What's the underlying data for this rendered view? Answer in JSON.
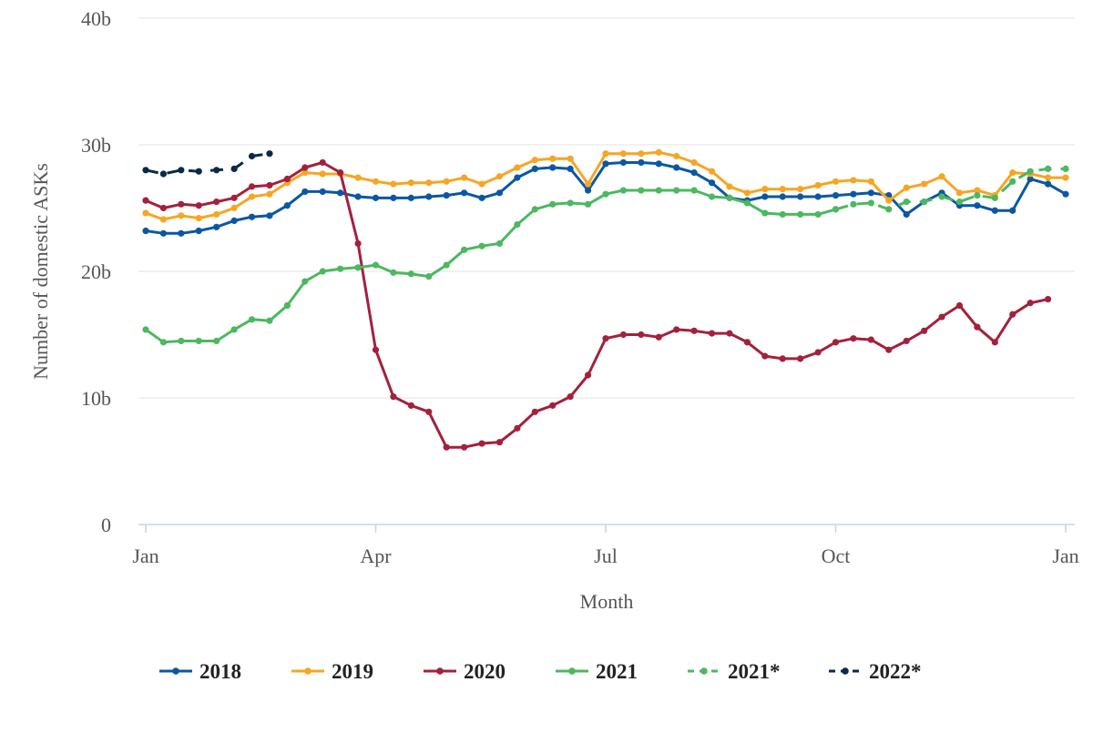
{
  "chart_data": {
    "type": "line",
    "title": "",
    "xlabel": "Month",
    "ylabel": "Number of domestic ASKs",
    "y_unit": "billions",
    "ylim": [
      0,
      40
    ],
    "y_ticks": [
      0,
      10,
      20,
      30,
      40
    ],
    "y_tick_labels": [
      "0",
      "10b",
      "20b",
      "30b",
      "40b"
    ],
    "x_unit": "week of year (1 = first week of January)",
    "xlim": [
      1,
      53
    ],
    "x_ticks": [
      1,
      14,
      27,
      40,
      53
    ],
    "x_tick_labels": [
      "Jan",
      "Apr",
      "Jul",
      "Oct",
      "Jan"
    ],
    "grid": "horizontal",
    "legend_position": "bottom",
    "series": [
      {
        "name": "2018",
        "color": "#0b57a4",
        "dash": "solid",
        "x": [
          1,
          2,
          3,
          4,
          5,
          6,
          7,
          8,
          9,
          10,
          11,
          12,
          13,
          14,
          15,
          16,
          17,
          18,
          19,
          20,
          21,
          22,
          23,
          24,
          25,
          26,
          27,
          28,
          29,
          30,
          31,
          32,
          33,
          34,
          35,
          36,
          37,
          38,
          39,
          40,
          41,
          42,
          43,
          44,
          45,
          46,
          47,
          48,
          49,
          50,
          51,
          52,
          53
        ],
        "values": [
          23.2,
          23.0,
          23.0,
          23.2,
          23.5,
          24.0,
          24.3,
          24.4,
          25.2,
          26.3,
          26.3,
          26.2,
          25.9,
          25.8,
          25.8,
          25.8,
          25.9,
          26.0,
          26.2,
          25.8,
          26.2,
          27.4,
          28.1,
          28.2,
          28.1,
          26.4,
          28.5,
          28.6,
          28.6,
          28.5,
          28.2,
          27.8,
          27.0,
          25.8,
          25.6,
          25.9,
          25.9,
          25.9,
          25.9,
          26.0,
          26.1,
          26.2,
          26.0,
          24.5,
          25.5,
          26.2,
          25.2,
          25.2,
          24.8,
          24.8,
          27.3,
          26.9,
          26.1
        ]
      },
      {
        "name": "2019",
        "color": "#f5a623",
        "dash": "solid",
        "x": [
          1,
          2,
          3,
          4,
          5,
          6,
          7,
          8,
          9,
          10,
          11,
          12,
          13,
          14,
          15,
          16,
          17,
          18,
          19,
          20,
          21,
          22,
          23,
          24,
          25,
          26,
          27,
          28,
          29,
          30,
          31,
          32,
          33,
          34,
          35,
          36,
          37,
          38,
          39,
          40,
          41,
          42,
          43,
          44,
          45,
          46,
          47,
          48,
          49,
          50,
          51,
          52,
          53
        ],
        "values": [
          24.6,
          24.1,
          24.4,
          24.2,
          24.5,
          25.0,
          25.9,
          26.1,
          27.0,
          27.8,
          27.7,
          27.7,
          27.4,
          27.1,
          26.9,
          27.0,
          27.0,
          27.1,
          27.4,
          26.9,
          27.5,
          28.2,
          28.8,
          28.9,
          28.9,
          26.9,
          29.3,
          29.3,
          29.3,
          29.4,
          29.1,
          28.6,
          27.9,
          26.7,
          26.2,
          26.5,
          26.5,
          26.5,
          26.8,
          27.1,
          27.2,
          27.1,
          25.6,
          26.6,
          26.9,
          27.5,
          26.2,
          26.4,
          26.0,
          27.8,
          27.7,
          27.4,
          27.4
        ]
      },
      {
        "name": "2020",
        "color": "#a3213d",
        "dash": "solid",
        "x": [
          1,
          2,
          3,
          4,
          5,
          6,
          7,
          8,
          9,
          10,
          11,
          12,
          13,
          14,
          15,
          16,
          17,
          18,
          19,
          20,
          21,
          22,
          23,
          24,
          25,
          26,
          27,
          28,
          29,
          30,
          31,
          32,
          33,
          34,
          35,
          36,
          37,
          38,
          39,
          40,
          41,
          42,
          43,
          44,
          45,
          46,
          47,
          48,
          49,
          50,
          51,
          52,
          53
        ],
        "values": [
          25.6,
          25.0,
          25.3,
          25.2,
          25.5,
          25.8,
          26.7,
          26.8,
          27.3,
          28.2,
          28.6,
          27.8,
          22.2,
          13.8,
          10.1,
          9.4,
          8.9,
          6.1,
          6.1,
          6.4,
          6.5,
          7.6,
          8.9,
          9.4,
          10.1,
          11.8,
          14.7,
          15.0,
          15.0,
          14.8,
          15.4,
          15.3,
          15.1,
          15.1,
          14.4,
          13.3,
          13.1,
          13.1,
          13.6,
          14.4,
          14.7,
          14.6,
          13.8,
          14.5,
          15.3,
          16.4,
          17.3,
          15.6,
          14.4,
          16.6,
          17.5,
          17.8,
          null
        ]
      },
      {
        "name": "2021",
        "color": "#4cb860",
        "dash": "solid",
        "x": [
          1,
          2,
          3,
          4,
          5,
          6,
          7,
          8,
          9,
          10,
          11,
          12,
          13,
          14,
          15,
          16,
          17,
          18,
          19,
          20,
          21,
          22,
          23,
          24,
          25,
          26,
          27,
          28,
          29,
          30,
          31,
          32,
          33,
          34,
          35,
          36,
          37,
          38,
          39,
          40
        ],
        "values": [
          15.4,
          14.4,
          14.5,
          14.5,
          14.5,
          15.4,
          16.2,
          16.1,
          17.3,
          19.2,
          20.0,
          20.2,
          20.3,
          20.5,
          19.9,
          19.8,
          19.6,
          20.5,
          21.7,
          22.0,
          22.2,
          23.7,
          24.9,
          25.3,
          25.4,
          25.3,
          26.1,
          26.4,
          26.4,
          26.4,
          26.4,
          26.4,
          25.9,
          25.8,
          25.4,
          24.6,
          24.5,
          24.5,
          24.5,
          24.9
        ]
      },
      {
        "name": "2021*",
        "color": "#4cb860",
        "dash": "dashed",
        "x": [
          40,
          41,
          42,
          43,
          44,
          45,
          46,
          47,
          48,
          49,
          50,
          51,
          52,
          53
        ],
        "values": [
          24.9,
          25.3,
          25.4,
          24.9,
          25.5,
          25.5,
          25.9,
          25.5,
          26.0,
          25.8,
          27.1,
          27.9,
          28.1,
          28.1
        ]
      },
      {
        "name": "2022*",
        "color": "#0a2a4a",
        "dash": "dashed",
        "x": [
          1,
          2,
          3,
          4,
          5,
          6,
          7,
          8,
          9
        ],
        "values": [
          28.0,
          27.7,
          28.0,
          27.9,
          28.0,
          28.1,
          29.1,
          29.3,
          null
        ]
      }
    ]
  }
}
